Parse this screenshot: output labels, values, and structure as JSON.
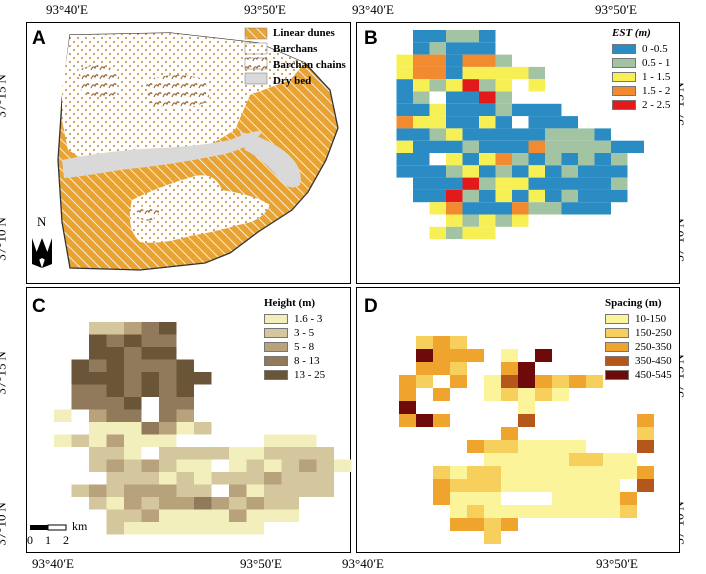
{
  "axes": {
    "lon_left": "93°40′E",
    "lon_right": "93°50′E",
    "lat_top": "37°15′N",
    "lat_bottom": "37°10′N"
  },
  "panel_a": {
    "label": "A",
    "legend": [
      {
        "label": "Linear dunes",
        "pattern": "linear"
      },
      {
        "label": "Barchans",
        "pattern": "dots"
      },
      {
        "label": "Barchan chains",
        "pattern": "chains"
      },
      {
        "label": "Dry bed",
        "pattern": "drybed"
      }
    ],
    "north_label": "N",
    "colors": {
      "linear": "#e8a333",
      "drybed": "#d9d9d9",
      "dots": "#c89b5a"
    }
  },
  "panel_b": {
    "label": "B",
    "legend_title": "EST (m)",
    "legend": [
      {
        "label": "0 -0.5",
        "color": "#2b8cc4"
      },
      {
        "label": "0.5 - 1",
        "color": "#a3c4a3"
      },
      {
        "label": "1 - 1.5",
        "color": "#f7f055"
      },
      {
        "label": "1.5 - 2",
        "color": "#f28a30"
      },
      {
        "label": "2 - 2.5",
        "color": "#e31a1c"
      }
    ]
  },
  "panel_c": {
    "label": "C",
    "legend_title": "Height (m)",
    "legend": [
      {
        "label": "1.6 - 3",
        "color": "#f3efbd"
      },
      {
        "label": "3 - 5",
        "color": "#d4c79e"
      },
      {
        "label": "5 - 8",
        "color": "#b8a27c"
      },
      {
        "label": "8 - 13",
        "color": "#917a5b"
      },
      {
        "label": "13 - 25",
        "color": "#6b5539"
      }
    ],
    "scale": {
      "ticks": [
        "0",
        "1",
        "2"
      ],
      "unit": "km"
    }
  },
  "panel_d": {
    "label": "D",
    "legend_title": "Spacing (m)",
    "legend": [
      {
        "label": "10-150",
        "color": "#fbf49b"
      },
      {
        "label": "150-250",
        "color": "#f7cf5d"
      },
      {
        "label": "250-350",
        "color": "#eea42d"
      },
      {
        "label": "350-450",
        "color": "#b5561a"
      },
      {
        "label": "450-545",
        "color": "#6e0a0a"
      }
    ]
  },
  "grids": {
    "b": [
      "..00110..........",
      "..01000..........",
      ".2330331.........",
      ".233022221........",
      ".0212412.2........",
      ".01.0041.........",
      ".0020001000.......",
      ".3220020.000......",
      ".0012000001110....",
      ".200010003111100..",
      ".00.20231010101...",
      ".00012010201000...",
      "..0004122000001...",
      "..0041020201000...",
      "...23000311000....",
      "....21212.........",
      "...2122..........."
    ],
    "c": [
      "..11234.........",
      "..43433.........",
      "..44344.........",
      ".4343334.........",
      ".44434344........",
      ".3343434.........",
      ".3334.33.........",
      "0.233.32.........",
      "..0003201.......",
      "0102000.....000..",
      "..110.1111001111.",
      "..1212100.0101210",
      "...1110101112111",
      ".12122211.201111",
      "..102122321211.",
      "...11200002000..",
      "...100000000...."
    ],
    "d": [
      "..121...........",
      "..4222.0.4......",
      "..221..24.......",
      ".21.2.0342121...",
      ".2.2..01010.....",
      ".4......0.......",
      ".242....3......2",
      ".......2.......1",
      ".....2110000...3",
      "......000001100.",
      "...1011000000002",
      "...21110000000.3",
      "...2000...00002",
      "....01000000001",
      "....2212........",
      "......1........."
    ]
  }
}
